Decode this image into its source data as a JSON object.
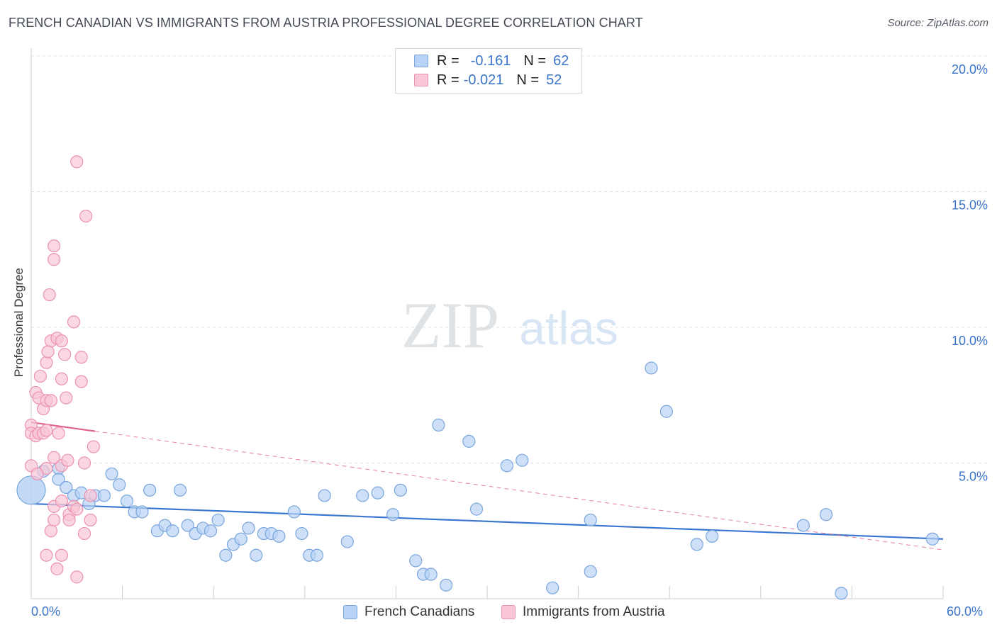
{
  "title": "FRENCH CANADIAN VS IMMIGRANTS FROM AUSTRIA PROFESSIONAL DEGREE CORRELATION CHART",
  "source": "Source: ZipAtlas.com",
  "watermark": {
    "zip": "ZIP",
    "atlas": "atlas"
  },
  "colors": {
    "blue_fill": "#b8d3f5",
    "blue_stroke": "#7aa6dd",
    "blue_line": "#3a76d0",
    "pink_fill": "#f8c6d6",
    "pink_stroke": "#ec92b0",
    "pink_line": "#e0608a",
    "axis_text": "#3a74c9",
    "grid": "#dde1e6"
  },
  "legend": {
    "rows": [
      {
        "r_label": "R =",
        "r_value": "-0.161",
        "n_label": "N =",
        "n_value": "62"
      },
      {
        "r_label": "R =",
        "r_value": "-0.021",
        "n_label": "N =",
        "n_value": "52"
      }
    ]
  },
  "chart_data": {
    "type": "scatter",
    "xlabel": "",
    "ylabel": "Professional Degree",
    "xlim": [
      0,
      60
    ],
    "ylim": [
      0,
      20
    ],
    "x_tick_labels": [
      "0.0%",
      "60.0%"
    ],
    "y_tick_labels": [
      "5.0%",
      "10.0%",
      "15.0%",
      "20.0%"
    ],
    "y_ticks": [
      5,
      10,
      15,
      20
    ],
    "x_minor_ticks": [
      0,
      6,
      12,
      18,
      24,
      30,
      36,
      42,
      48,
      54,
      60
    ],
    "series": [
      {
        "name": "French Canadians",
        "color": "blue",
        "trend": {
          "x0": 0,
          "y0": 3.5,
          "x1": 60,
          "y1": 2.2,
          "dashed_from": null
        },
        "points": [
          [
            0.0,
            4.0,
            1
          ],
          [
            0.8,
            4.7,
            0
          ],
          [
            1.8,
            4.8,
            0
          ],
          [
            1.8,
            4.4,
            0
          ],
          [
            2.3,
            4.1,
            0
          ],
          [
            2.8,
            3.8,
            0
          ],
          [
            3.3,
            3.9,
            0
          ],
          [
            3.8,
            3.5,
            0
          ],
          [
            4.2,
            3.8,
            0
          ],
          [
            4.8,
            3.8,
            0
          ],
          [
            5.3,
            4.6,
            0
          ],
          [
            5.8,
            4.2,
            0
          ],
          [
            6.3,
            3.6,
            0
          ],
          [
            6.8,
            3.2,
            0
          ],
          [
            7.3,
            3.2,
            0
          ],
          [
            7.8,
            4.0,
            0
          ],
          [
            8.3,
            2.5,
            0
          ],
          [
            8.8,
            2.7,
            0
          ],
          [
            9.3,
            2.5,
            0
          ],
          [
            9.8,
            4.0,
            0
          ],
          [
            10.3,
            2.7,
            0
          ],
          [
            10.8,
            2.4,
            0
          ],
          [
            11.3,
            2.6,
            0
          ],
          [
            11.8,
            2.5,
            0
          ],
          [
            12.3,
            2.9,
            0
          ],
          [
            12.8,
            1.6,
            0
          ],
          [
            13.3,
            2.0,
            0
          ],
          [
            13.8,
            2.2,
            0
          ],
          [
            14.3,
            2.6,
            0
          ],
          [
            14.8,
            1.6,
            0
          ],
          [
            15.3,
            2.4,
            0
          ],
          [
            15.8,
            2.4,
            0
          ],
          [
            16.3,
            2.3,
            0
          ],
          [
            17.3,
            3.2,
            0
          ],
          [
            17.8,
            2.4,
            0
          ],
          [
            18.3,
            1.6,
            0
          ],
          [
            18.8,
            1.6,
            0
          ],
          [
            19.3,
            3.8,
            0
          ],
          [
            20.8,
            2.1,
            0
          ],
          [
            21.8,
            3.8,
            0
          ],
          [
            22.8,
            3.9,
            0
          ],
          [
            23.8,
            3.1,
            0
          ],
          [
            24.3,
            4.0,
            0
          ],
          [
            25.3,
            1.4,
            0
          ],
          [
            25.8,
            0.9,
            0
          ],
          [
            26.3,
            0.9,
            0
          ],
          [
            26.8,
            6.4,
            0
          ],
          [
            27.3,
            0.5,
            0
          ],
          [
            28.8,
            5.8,
            0
          ],
          [
            29.3,
            3.3,
            0
          ],
          [
            31.3,
            4.9,
            0
          ],
          [
            32.3,
            5.1,
            0
          ],
          [
            34.3,
            0.4,
            0
          ],
          [
            36.8,
            1.0,
            0
          ],
          [
            36.8,
            2.9,
            0
          ],
          [
            40.8,
            8.5,
            0
          ],
          [
            41.8,
            6.9,
            0
          ],
          [
            43.8,
            2.0,
            0
          ],
          [
            44.8,
            2.3,
            0
          ],
          [
            50.8,
            2.7,
            0
          ],
          [
            52.3,
            3.1,
            0
          ],
          [
            53.3,
            0.2,
            0
          ],
          [
            59.3,
            2.2,
            0
          ]
        ]
      },
      {
        "name": "Immigrants from Austria",
        "color": "pink",
        "trend": {
          "x0": 0,
          "y0": 6.5,
          "x1": 60,
          "y1": 1.8,
          "solid_until": 4.2
        },
        "points": [
          [
            0.0,
            6.4,
            0
          ],
          [
            0.0,
            6.1,
            0
          ],
          [
            0.0,
            4.9,
            0
          ],
          [
            0.3,
            7.6,
            0
          ],
          [
            0.3,
            6.0,
            0
          ],
          [
            0.5,
            7.4,
            0
          ],
          [
            0.5,
            6.1,
            0
          ],
          [
            0.6,
            8.2,
            0
          ],
          [
            0.8,
            7.0,
            0
          ],
          [
            0.8,
            6.1,
            0
          ],
          [
            1.0,
            8.7,
            0
          ],
          [
            1.0,
            7.3,
            0
          ],
          [
            1.0,
            6.2,
            0
          ],
          [
            1.0,
            4.8,
            0
          ],
          [
            1.0,
            1.6,
            0
          ],
          [
            1.2,
            11.2,
            0
          ],
          [
            1.3,
            9.5,
            0
          ],
          [
            1.3,
            7.3,
            0
          ],
          [
            1.3,
            2.5,
            0
          ],
          [
            1.5,
            13.0,
            0
          ],
          [
            1.5,
            12.5,
            0
          ],
          [
            1.5,
            5.2,
            0
          ],
          [
            1.5,
            3.4,
            0
          ],
          [
            1.5,
            2.9,
            0
          ],
          [
            1.7,
            9.6,
            0
          ],
          [
            1.7,
            1.1,
            0
          ],
          [
            2.0,
            9.5,
            0
          ],
          [
            2.0,
            8.1,
            0
          ],
          [
            2.0,
            4.9,
            0
          ],
          [
            2.0,
            3.6,
            0
          ],
          [
            2.0,
            1.6,
            0
          ],
          [
            2.2,
            9.0,
            0
          ],
          [
            2.3,
            7.4,
            0
          ],
          [
            2.5,
            3.1,
            0
          ],
          [
            2.5,
            2.9,
            0
          ],
          [
            2.8,
            10.2,
            0
          ],
          [
            2.8,
            3.4,
            0
          ],
          [
            3.0,
            16.1,
            0
          ],
          [
            3.0,
            3.3,
            0
          ],
          [
            3.0,
            0.8,
            0
          ],
          [
            3.3,
            8.9,
            0
          ],
          [
            3.3,
            8.0,
            0
          ],
          [
            3.5,
            5.0,
            0
          ],
          [
            3.5,
            2.4,
            0
          ],
          [
            3.9,
            3.8,
            0
          ],
          [
            3.9,
            2.9,
            0
          ],
          [
            4.1,
            5.6,
            0
          ],
          [
            3.6,
            14.1,
            0
          ],
          [
            1.8,
            6.1,
            0
          ],
          [
            0.4,
            4.6,
            0
          ],
          [
            2.4,
            5.1,
            0
          ],
          [
            1.1,
            9.1,
            0
          ]
        ]
      }
    ]
  },
  "bottom_legend": [
    {
      "label": "French Canadians"
    },
    {
      "label": "Immigrants from Austria"
    }
  ]
}
